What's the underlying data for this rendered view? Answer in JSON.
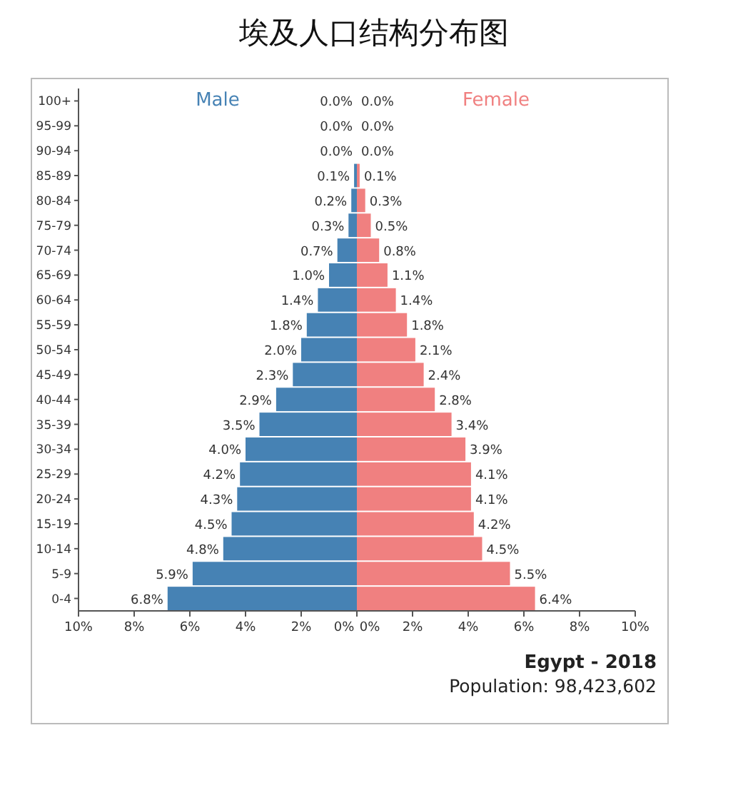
{
  "chart_data": [
    {
      "type": "bar",
      "orientation": "horizontal",
      "title": "埃及人口结构分布图",
      "categories": [
        "100+",
        "95-99",
        "90-94",
        "85-89",
        "80-84",
        "75-79",
        "70-74",
        "65-69",
        "60-64",
        "55-59",
        "50-54",
        "45-49",
        "40-44",
        "35-39",
        "30-34",
        "25-29",
        "20-24",
        "15-19",
        "10-14",
        "5-9",
        "0-4"
      ],
      "series": [
        {
          "name": "Male",
          "color": "#4682b4",
          "values": [
            0.0,
            0.0,
            0.0,
            0.1,
            0.2,
            0.3,
            0.7,
            1.0,
            1.4,
            1.8,
            2.0,
            2.3,
            2.9,
            3.5,
            4.0,
            4.2,
            4.3,
            4.5,
            4.8,
            5.9,
            6.8
          ],
          "value_labels": [
            "0.0%",
            "0.0%",
            "0.0%",
            "0.1%",
            "0.2%",
            "0.3%",
            "0.7%",
            "1.0%",
            "1.4%",
            "1.8%",
            "2.0%",
            "2.3%",
            "2.9%",
            "3.5%",
            "4.0%",
            "4.2%",
            "4.3%",
            "4.5%",
            "4.8%",
            "5.9%",
            "6.8%"
          ]
        }
      ],
      "xlim": [
        10,
        0
      ],
      "xticks": [
        {
          "value": 10,
          "label": "10%"
        },
        {
          "value": 8,
          "label": "8%"
        },
        {
          "value": 6,
          "label": "6%"
        },
        {
          "value": 4,
          "label": "4%"
        },
        {
          "value": 2,
          "label": "2%"
        },
        {
          "value": 0,
          "label": "0%"
        }
      ]
    },
    {
      "type": "bar",
      "orientation": "horizontal",
      "categories": [
        null,
        null,
        null,
        null,
        null,
        null,
        null,
        null,
        null,
        null,
        null,
        null,
        null,
        null,
        null,
        null,
        null,
        null,
        null,
        null,
        null
      ],
      "series": [
        {
          "name": "Female",
          "color": "#f08080",
          "values": [
            0.0,
            0.0,
            0.0,
            0.1,
            0.3,
            0.5,
            0.8,
            1.1,
            1.4,
            1.8,
            2.1,
            2.4,
            2.8,
            3.4,
            3.9,
            4.1,
            4.1,
            4.2,
            4.5,
            5.5,
            6.4
          ],
          "value_labels": [
            "0.0%",
            "0.0%",
            "0.0%",
            "0.1%",
            "0.3%",
            "0.5%",
            "0.8%",
            "1.1%",
            "1.4%",
            "1.8%",
            "2.1%",
            "2.4%",
            "2.8%",
            "3.4%",
            "3.9%",
            "4.1%",
            "4.1%",
            "4.2%",
            "4.5%",
            "5.5%",
            "6.4%"
          ]
        }
      ],
      "xlim": [
        0,
        10
      ],
      "xticks": [
        {
          "value": 0,
          "label": "0%"
        },
        {
          "value": 2,
          "label": "2%"
        },
        {
          "value": 4,
          "label": "4%"
        },
        {
          "value": 6,
          "label": "6%"
        },
        {
          "value": 8,
          "label": "8%"
        },
        {
          "value": 10,
          "label": "10%"
        }
      ],
      "tick_labels": "x",
      "annotations": [
        "Egypt - 2018",
        "Population: 98,423,602"
      ]
    }
  ]
}
